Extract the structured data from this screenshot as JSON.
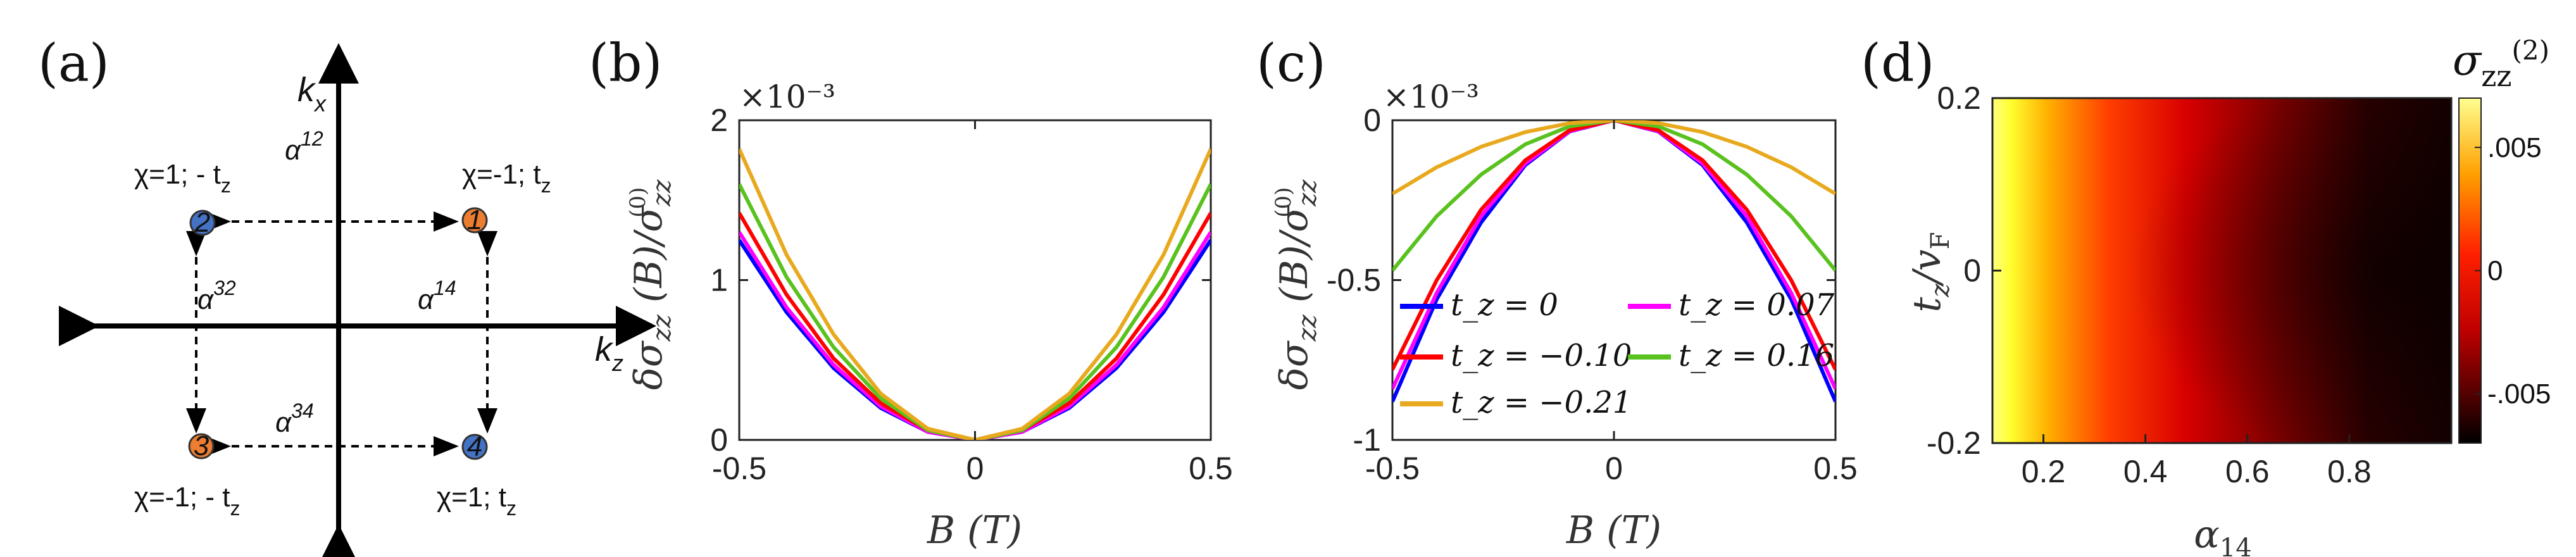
{
  "panel_labels": {
    "a": "(a)",
    "b": "(b)",
    "c": "(c)",
    "d": "(d)"
  },
  "diagram": {
    "kx": "k",
    "kx_sub": "x",
    "kz": "k",
    "kz_sub": "z",
    "nodes": [
      {
        "num": "1",
        "label": "χ=-1; t",
        "label_sub": "z",
        "color": "#ED7D31"
      },
      {
        "num": "2",
        "label": "χ=1; - t",
        "label_sub": "z",
        "color": "#4472C4"
      },
      {
        "num": "3",
        "label": "χ=-1; - t",
        "label_sub": "z",
        "color": "#ED7D31"
      },
      {
        "num": "4",
        "label": "χ=1; t",
        "label_sub": "z",
        "color": "#4472C4"
      }
    ],
    "couplings": {
      "a12": "12",
      "a14": "14",
      "a32": "32",
      "a34": "34",
      "alpha": "α"
    }
  },
  "chart_data": [
    {
      "type": "line",
      "panel": "b",
      "xlabel": "B (T)",
      "ylabel": "δσ_zz (B)/σ_zz^(0)",
      "exponent": "×10⁻³",
      "xlim": [
        -0.5,
        0.5
      ],
      "ylim": [
        0,
        2
      ],
      "xticks": [
        -0.5,
        0,
        0.5
      ],
      "xtick_labels": [
        "-0.5",
        "0",
        "0.5"
      ],
      "yticks": [
        0,
        1,
        2
      ],
      "ytick_labels": [
        "0",
        "1",
        "2"
      ],
      "x": [
        -0.5,
        -0.4,
        -0.3,
        -0.2,
        -0.1,
        0,
        0.1,
        0.2,
        0.3,
        0.4,
        0.5
      ],
      "series": [
        {
          "color": "#0000FF",
          "values": [
            1.25,
            0.8,
            0.45,
            0.2,
            0.05,
            0,
            0.05,
            0.2,
            0.45,
            0.8,
            1.25
          ]
        },
        {
          "color": "#FF00FF",
          "values": [
            1.3,
            0.83,
            0.47,
            0.21,
            0.05,
            0,
            0.05,
            0.21,
            0.47,
            0.83,
            1.3
          ]
        },
        {
          "color": "#FF0000",
          "values": [
            1.42,
            0.91,
            0.51,
            0.23,
            0.06,
            0,
            0.06,
            0.23,
            0.51,
            0.91,
            1.42
          ]
        },
        {
          "color": "#59C21E",
          "values": [
            1.6,
            1.02,
            0.58,
            0.26,
            0.06,
            0,
            0.06,
            0.26,
            0.58,
            1.02,
            1.6
          ]
        },
        {
          "color": "#E8A91E",
          "values": [
            1.82,
            1.16,
            0.66,
            0.29,
            0.07,
            0,
            0.07,
            0.29,
            0.66,
            1.16,
            1.82
          ]
        }
      ]
    },
    {
      "type": "line",
      "panel": "c",
      "xlabel": "B (T)",
      "ylabel": "δσ_zz (B)/σ_zz^(0)",
      "exponent": "×10⁻³",
      "xlim": [
        -0.5,
        0.5
      ],
      "ylim": [
        -1,
        0
      ],
      "xticks": [
        -0.5,
        0,
        0.5
      ],
      "xtick_labels": [
        "-0.5",
        "0",
        "0.5"
      ],
      "yticks": [
        -1,
        -0.5,
        0
      ],
      "ytick_labels": [
        "-1",
        "-0.5",
        "0"
      ],
      "x": [
        -0.5,
        -0.4,
        -0.3,
        -0.2,
        -0.1,
        0,
        0.1,
        0.2,
        0.3,
        0.4,
        0.5
      ],
      "series": [
        {
          "name": "t_z = 0",
          "color": "#0000FF",
          "values": [
            -0.88,
            -0.56,
            -0.32,
            -0.14,
            -0.035,
            0,
            -0.035,
            -0.14,
            -0.32,
            -0.56,
            -0.88
          ]
        },
        {
          "name": "t_z = 0.07",
          "color": "#FF00FF",
          "values": [
            -0.84,
            -0.54,
            -0.3,
            -0.135,
            -0.034,
            0,
            -0.034,
            -0.135,
            -0.3,
            -0.54,
            -0.84
          ]
        },
        {
          "name": "t_z = −0.10",
          "color": "#FF0000",
          "values": [
            -0.78,
            -0.5,
            -0.28,
            -0.125,
            -0.031,
            0,
            -0.031,
            -0.125,
            -0.28,
            -0.5,
            -0.78
          ]
        },
        {
          "name": "t_z = 0.16",
          "color": "#59C21E",
          "values": [
            -0.47,
            -0.3,
            -0.17,
            -0.075,
            -0.019,
            0,
            -0.019,
            -0.075,
            -0.17,
            -0.3,
            -0.47
          ]
        },
        {
          "name": "t_z = −0.21",
          "color": "#E8A91E",
          "values": [
            -0.23,
            -0.147,
            -0.083,
            -0.037,
            -0.009,
            0,
            -0.009,
            -0.037,
            -0.083,
            -0.147,
            -0.23
          ]
        }
      ],
      "legend_location": "bottom"
    },
    {
      "type": "heatmap",
      "panel": "d",
      "xlabel": "α_14",
      "ylabel": "t_z/v_F",
      "xlim": [
        0.1,
        1.0
      ],
      "ylim": [
        -0.2,
        0.2
      ],
      "xticks": [
        0.2,
        0.4,
        0.6,
        0.8
      ],
      "xtick_labels": [
        "0.2",
        "0.4",
        "0.6",
        "0.8"
      ],
      "yticks": [
        -0.2,
        0,
        0.2
      ],
      "ytick_labels": [
        "-0.2",
        "0",
        "0.2"
      ],
      "colorbar": {
        "title": "σ_zz^(2)",
        "ticks": [
          -0.005,
          0,
          0.005
        ],
        "tick_labels": [
          "-.005",
          "0",
          ".005"
        ],
        "range": [
          -0.007,
          0.007
        ],
        "colormap": "hot"
      }
    }
  ]
}
